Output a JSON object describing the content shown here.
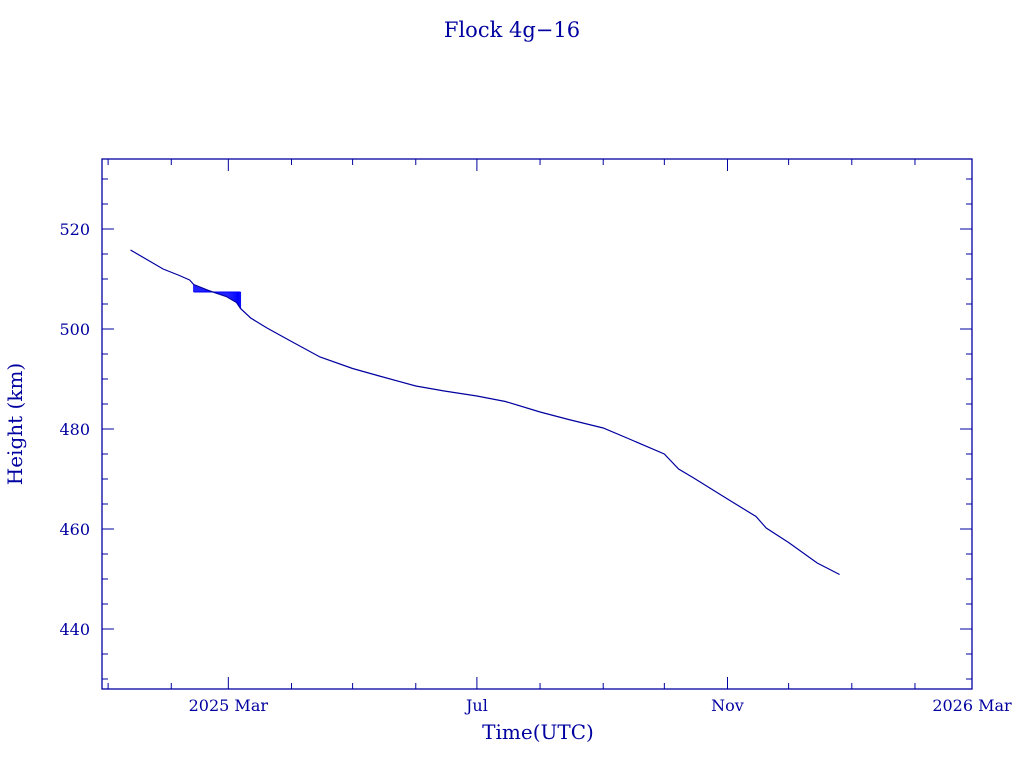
{
  "colors": {
    "foreground": "#0000a0",
    "series": "#0000ff",
    "background": "#ffffff"
  },
  "chart_data": {
    "type": "line",
    "title": "Flock 4g−16",
    "xlabel": "Time(UTC)",
    "ylabel": "Height (km)",
    "xlim": [
      "2024-12-29",
      "2026-03-01"
    ],
    "ylim": [
      428,
      534
    ],
    "x_ticks": [
      {
        "date": "2025-03-01",
        "label": "2025 Mar"
      },
      {
        "date": "2025-07-01",
        "label": "Jul"
      },
      {
        "date": "2025-11-01",
        "label": "Nov"
      },
      {
        "date": "2026-03-01",
        "label": "2026 Mar"
      }
    ],
    "y_ticks": [
      440,
      460,
      480,
      500,
      520
    ],
    "grid": false,
    "series": [
      {
        "points": [
          [
            "2025-01-12",
            515.8
          ],
          [
            "2025-01-20",
            513.9
          ],
          [
            "2025-01-28",
            512.0
          ],
          [
            "2025-02-05",
            510.7
          ],
          [
            "2025-02-10",
            509.8
          ],
          [
            "2025-02-12",
            508.9
          ],
          [
            "2025-02-20",
            507.6
          ],
          [
            "2025-02-28",
            506.5
          ],
          [
            "2025-03-05",
            505.3
          ],
          [
            "2025-03-07",
            504.1
          ],
          [
            "2025-03-12",
            502.2
          ],
          [
            "2025-03-20",
            500.2
          ],
          [
            "2025-04-01",
            497.5
          ],
          [
            "2025-04-15",
            494.4
          ],
          [
            "2025-05-01",
            492.1
          ],
          [
            "2025-05-15",
            490.5
          ],
          [
            "2025-06-01",
            488.6
          ],
          [
            "2025-06-15",
            487.6
          ],
          [
            "2025-07-01",
            486.6
          ],
          [
            "2025-07-15",
            485.5
          ],
          [
            "2025-08-01",
            483.4
          ],
          [
            "2025-08-15",
            481.9
          ],
          [
            "2025-09-01",
            480.2
          ],
          [
            "2025-09-15",
            477.8
          ],
          [
            "2025-10-01",
            475.0
          ],
          [
            "2025-10-08",
            472.0
          ],
          [
            "2025-10-15",
            470.3
          ],
          [
            "2025-11-01",
            466.0
          ],
          [
            "2025-11-15",
            462.5
          ],
          [
            "2025-11-20",
            460.2
          ],
          [
            "2025-12-01",
            457.3
          ],
          [
            "2025-12-15",
            453.2
          ],
          [
            "2025-12-26",
            450.9
          ]
        ],
        "fluctuation_band": {
          "from": "2025-02-12",
          "to": "2025-03-07",
          "upper": 507.4
        }
      }
    ]
  }
}
